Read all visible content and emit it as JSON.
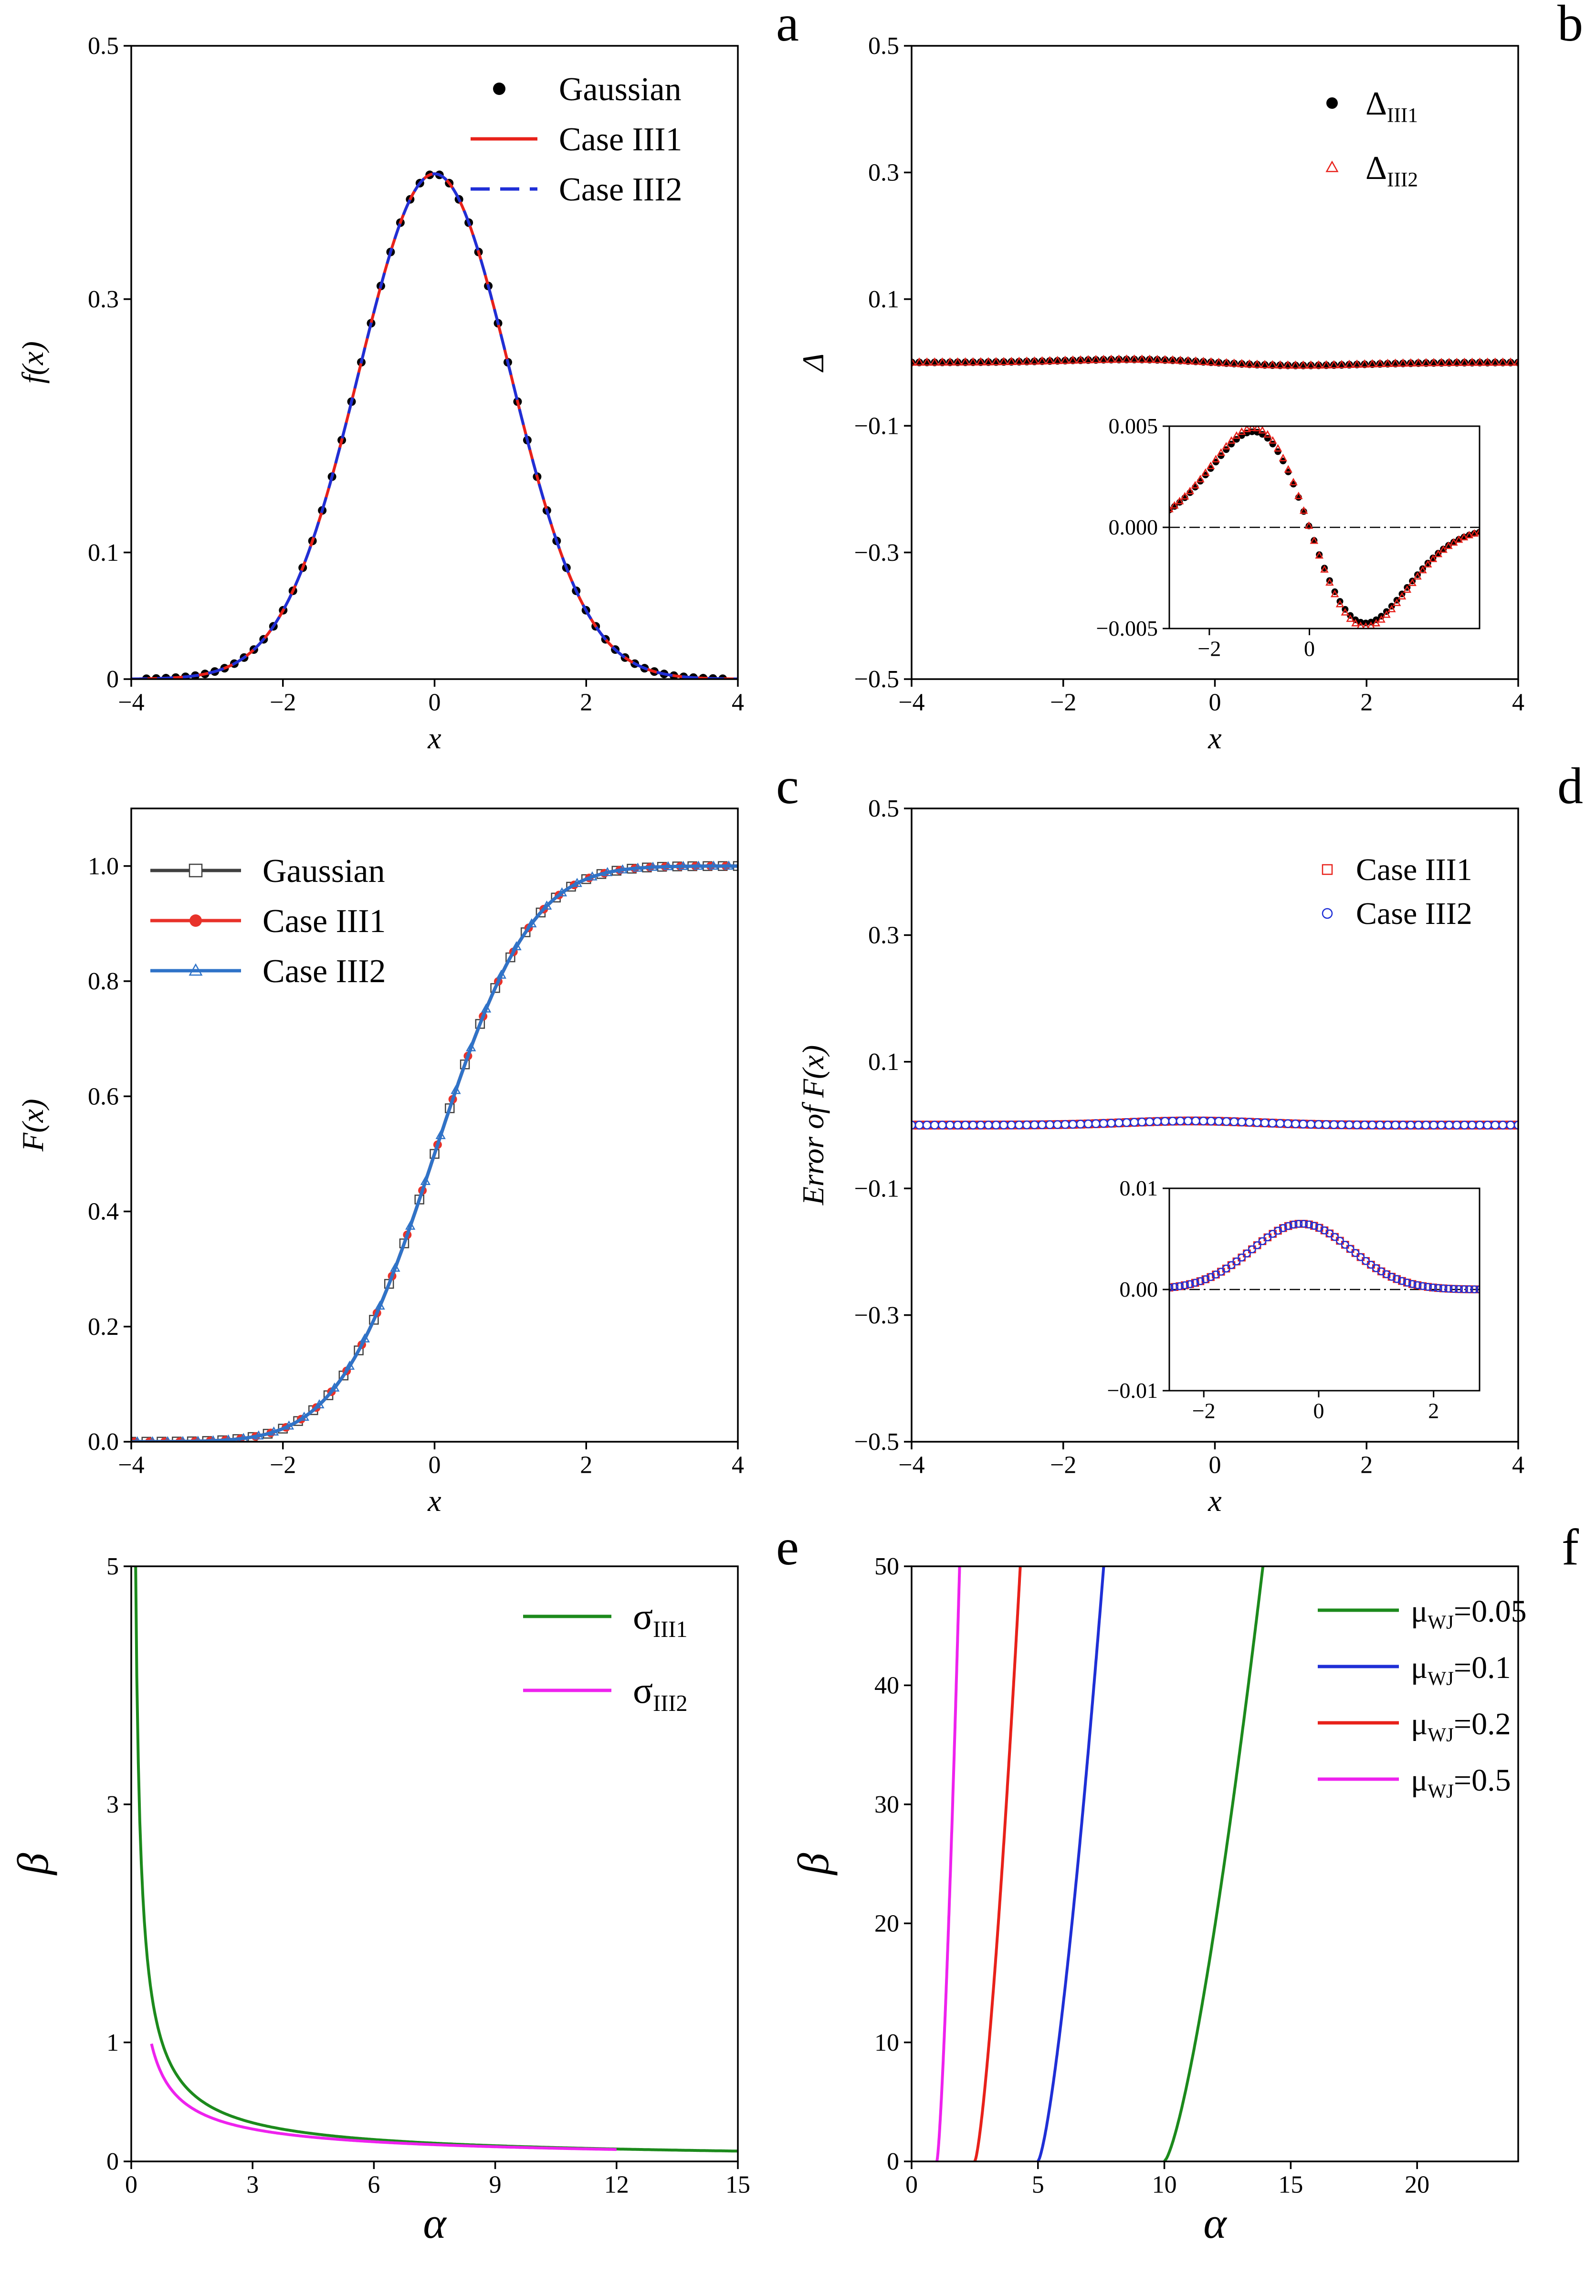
{
  "chart_data": [
    {
      "id": "a",
      "panel_label": "a",
      "type": "line",
      "xlabel": "x",
      "ylabel": "f(x)",
      "xlim": [
        -4,
        4
      ],
      "ylim": [
        0,
        0.5
      ],
      "xticks": [
        -4,
        -2,
        0,
        2,
        4
      ],
      "xtick_labels": [
        "−4",
        "−2",
        "0",
        "2",
        "4"
      ],
      "yticks": [
        0,
        0.1,
        0.3,
        0.5
      ],
      "ytick_labels": [
        "0",
        "0.1",
        "0.3",
        "0.5"
      ],
      "legend": "top-right",
      "series": [
        {
          "name": "Gaussian",
          "style": "markers",
          "marker": "dot",
          "color": "#000000",
          "function": "gaussian_pdf",
          "x_range": [
            -3.8,
            3.8
          ],
          "points": 60
        },
        {
          "name": "Case III1",
          "style": "solid",
          "color": "#e8211a",
          "function": "gaussian_pdf",
          "x_range": [
            -4,
            4
          ]
        },
        {
          "name": "Case III2",
          "style": "dashed",
          "color": "#1f2fd6",
          "function": "gaussian_pdf",
          "x_range": [
            -4,
            4
          ]
        }
      ]
    },
    {
      "id": "b",
      "panel_label": "b",
      "type": "scatter",
      "xlabel": "x",
      "ylabel": "Δ",
      "xlim": [
        -4,
        4
      ],
      "ylim": [
        -0.5,
        0.5
      ],
      "xticks": [
        -4,
        -2,
        0,
        2,
        4
      ],
      "xtick_labels": [
        "−4",
        "−2",
        "0",
        "2",
        "4"
      ],
      "yticks": [
        -0.5,
        -0.3,
        -0.1,
        0.1,
        0.3,
        0.5
      ],
      "ytick_labels": [
        "−0.5",
        "−0.3",
        "−0.1",
        "0.1",
        "0.3",
        "0.5"
      ],
      "legend": "top-right",
      "series": [
        {
          "name": "Δ",
          "subscript": "III1",
          "style": "markers",
          "marker": "dot",
          "color": "#000000",
          "function": "delta_pdf",
          "x_range": [
            -4,
            4
          ],
          "points": 80
        },
        {
          "name": "Δ",
          "subscript": "III2",
          "style": "markers",
          "marker": "triangle",
          "color": "#e8211a",
          "function": "delta_pdf",
          "x_range": [
            -4,
            4
          ],
          "points": 80
        }
      ],
      "inset": {
        "xlim": [
          -2.8,
          3.4
        ],
        "ylim": [
          -0.005,
          0.005
        ],
        "xticks": [
          -2,
          0
        ],
        "xtick_labels": [
          "−2",
          "0"
        ],
        "yticks": [
          -0.005,
          0,
          0.005
        ],
        "ytick_labels": [
          "−0.005",
          "0.000",
          "0.005"
        ],
        "reference_line": 0
      }
    },
    {
      "id": "c",
      "panel_label": "c",
      "type": "line",
      "xlabel": "x",
      "ylabel": "F(x)",
      "xlim": [
        -4,
        4
      ],
      "ylim": [
        0,
        1.1
      ],
      "xticks": [
        -4,
        -2,
        0,
        2,
        4
      ],
      "xtick_labels": [
        "−4",
        "−2",
        "0",
        "2",
        "4"
      ],
      "yticks": [
        0,
        0.2,
        0.4,
        0.6,
        0.8,
        1.0
      ],
      "ytick_labels": [
        "0.0",
        "0.2",
        "0.4",
        "0.6",
        "0.8",
        "1.0"
      ],
      "legend": "top-left",
      "series": [
        {
          "name": "Gaussian",
          "style": "solid",
          "marker": "square",
          "color": "#404040",
          "function": "gaussian_cdf",
          "x_range": [
            -4,
            4
          ],
          "points": 41
        },
        {
          "name": "Case III1",
          "style": "solid",
          "marker": "dot",
          "color": "#e8322a",
          "function": "gaussian_cdf",
          "x_range": [
            -4,
            4
          ],
          "points": 41
        },
        {
          "name": "Case III2",
          "style": "solid",
          "marker": "triangle",
          "color": "#2f73c8",
          "function": "gaussian_cdf",
          "x_range": [
            -4,
            4
          ],
          "points": 41
        }
      ]
    },
    {
      "id": "d",
      "panel_label": "d",
      "type": "scatter",
      "xlabel": "x",
      "ylabel": "Error of F(x)",
      "xlim": [
        -4,
        4
      ],
      "ylim": [
        -0.5,
        0.5
      ],
      "xticks": [
        -4,
        -2,
        0,
        2,
        4
      ],
      "xtick_labels": [
        "−4",
        "−2",
        "0",
        "2",
        "4"
      ],
      "yticks": [
        -0.5,
        -0.3,
        -0.1,
        0.1,
        0.3,
        0.5
      ],
      "ytick_labels": [
        "−0.5",
        "−0.3",
        "−0.1",
        "0.1",
        "0.3",
        "0.5"
      ],
      "legend": "top-right",
      "series": [
        {
          "name": "Case III1",
          "style": "markers",
          "marker": "open-square",
          "color": "#e8211a",
          "function": "error_cdf",
          "x_range": [
            -4,
            4
          ],
          "points": 80
        },
        {
          "name": "Case III2",
          "style": "markers",
          "marker": "open-circle",
          "color": "#1f2fd6",
          "function": "error_cdf",
          "x_range": [
            -4,
            4
          ],
          "points": 80
        }
      ],
      "inset": {
        "xlim": [
          -2.6,
          2.8
        ],
        "ylim": [
          -0.01,
          0.01
        ],
        "xticks": [
          -2,
          0,
          2
        ],
        "xtick_labels": [
          "−2",
          "0",
          "2"
        ],
        "yticks": [
          -0.01,
          0,
          0.01
        ],
        "ytick_labels": [
          "−0.01",
          "0.00",
          "0.01"
        ],
        "reference_line": 0
      }
    },
    {
      "id": "e",
      "panel_label": "e",
      "type": "line",
      "xlabel": "α",
      "ylabel": "β",
      "xlim": [
        0,
        15
      ],
      "ylim": [
        0,
        5
      ],
      "xticks": [
        0,
        3,
        6,
        9,
        12,
        15
      ],
      "xtick_labels": [
        "0",
        "3",
        "6",
        "9",
        "12",
        "15"
      ],
      "yticks": [
        0,
        1,
        3,
        5
      ],
      "ytick_labels": [
        "0",
        "1",
        "3",
        "5"
      ],
      "legend": "top-right",
      "series": [
        {
          "name": "σ",
          "subscript": "III1",
          "style": "solid",
          "color": "#1c8a1c",
          "function": "sigma_iii1",
          "x_range": [
            0.1,
            15
          ]
        },
        {
          "name": "σ",
          "subscript": "III2",
          "style": "solid",
          "color": "#ee22ee",
          "function": "sigma_iii2",
          "x_range": [
            0.5,
            12
          ]
        }
      ]
    },
    {
      "id": "f",
      "panel_label": "f",
      "type": "line",
      "xlabel": "α",
      "ylabel": "β",
      "xlim": [
        0,
        24
      ],
      "ylim": [
        0,
        50
      ],
      "xticks": [
        0,
        5,
        10,
        15,
        20
      ],
      "xtick_labels": [
        "0",
        "5",
        "10",
        "15",
        "20"
      ],
      "yticks": [
        0,
        10,
        20,
        30,
        40,
        50
      ],
      "ytick_labels": [
        "0",
        "10",
        "20",
        "30",
        "40",
        "50"
      ],
      "legend": "top-right",
      "series": [
        {
          "name": "μ",
          "subscript": "WJ",
          "suffix": "=0.05",
          "style": "solid",
          "color": "#1c8a1c",
          "endpoints": {
            "alpha_at_beta0": 10.0,
            "alpha_at_beta50": 13.9
          }
        },
        {
          "name": "μ",
          "subscript": "WJ",
          "suffix": "=0.1",
          "style": "solid",
          "color": "#1f2fd6",
          "endpoints": {
            "alpha_at_beta0": 5.0,
            "alpha_at_beta50": 7.6
          }
        },
        {
          "name": "μ",
          "subscript": "WJ",
          "suffix": "=0.2",
          "style": "solid",
          "color": "#e8211a",
          "endpoints": {
            "alpha_at_beta0": 2.5,
            "alpha_at_beta50": 4.3
          }
        },
        {
          "name": "μ",
          "subscript": "WJ",
          "suffix": "=0.5",
          "style": "solid",
          "color": "#ee22ee",
          "endpoints": {
            "alpha_at_beta0": 1.0,
            "alpha_at_beta50": 1.9
          }
        }
      ]
    }
  ]
}
